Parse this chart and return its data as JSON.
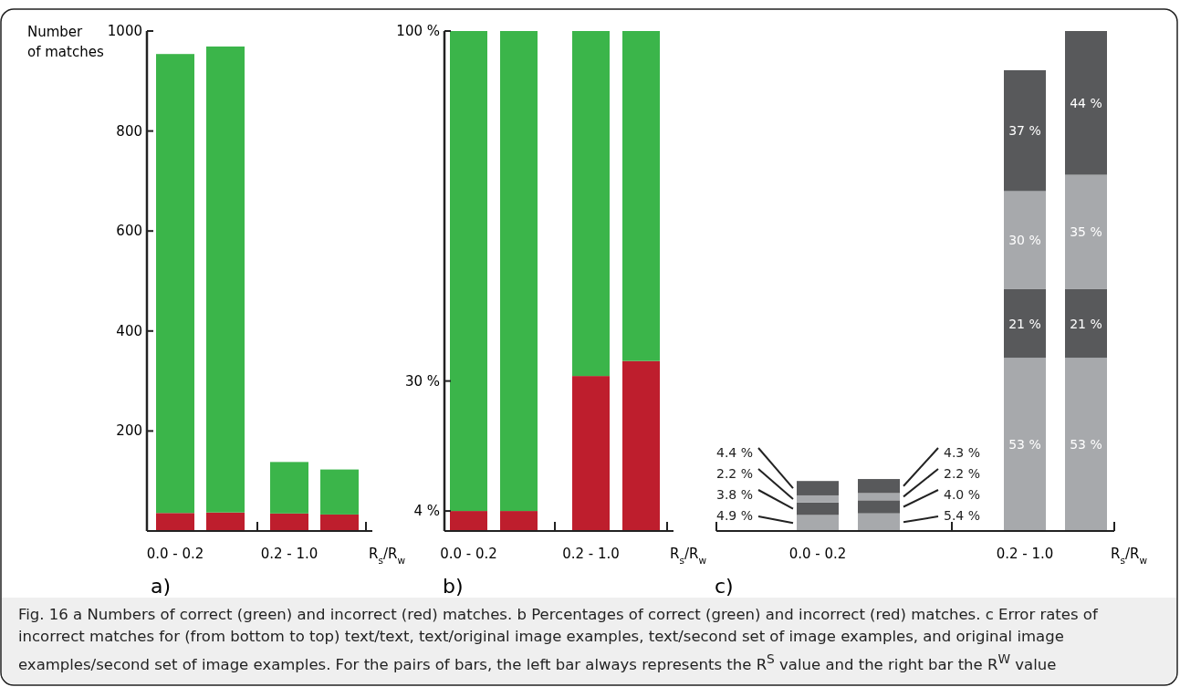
{
  "chart_data": [
    {
      "type": "bar",
      "stacked": true,
      "categories": [
        "0.0 - 0.2",
        null,
        "0.2 - 1.0",
        null
      ],
      "ylabel": "Number of matches",
      "xlabel": "R$_{s}$/R$_{w}$",
      "ylim": [
        0,
        1000
      ],
      "yticks": [
        200,
        400,
        600,
        800,
        1000
      ],
      "series": [
        {
          "color": "#be1e2d",
          "values": [
            36,
            37,
            35,
            33
          ]
        },
        {
          "color": "#3bb54a",
          "values": [
            918,
            932,
            103,
            90
          ]
        }
      ],
      "annotations": [
        "a)",
        "Fig. 16 a Numbers of correct (green) and incorrect (red) matches. b Percentages of correct (green) and incorrect (red) matches. c Error rates of incorrect matches for (from bottom to top) text/text, text/original image examples, text/second set of image examples, and original image examples/second set of image examples. For the pairs of bars, the left bar always represents the R$^{S}$ value and the right bar the R$^{W}$ value"
      ]
    },
    {
      "type": "bar",
      "stacked": true,
      "categories": [
        "0.0 - 0.2",
        null,
        "0.2 - 1.0",
        null
      ],
      "xlabel": "R$_{s}$/R$_{w}$",
      "ylim": [
        0,
        100
      ],
      "yticks": [
        {
          "value": 4,
          "label": "4 %"
        },
        {
          "value": 30,
          "label": "30 %"
        },
        {
          "value": 100,
          "label": "100 %"
        }
      ],
      "series": [
        {
          "color": "#be1e2d",
          "values": [
            4,
            4,
            31,
            34
          ]
        },
        {
          "color": "#3bb54a",
          "values": [
            96,
            96,
            69,
            66
          ]
        }
      ],
      "annotations": [
        "b)"
      ]
    },
    {
      "type": "bar",
      "stacked": true,
      "tick_labels": "x",
      "categories": [
        "0.0 - 0.2",
        null,
        "0.2 - 1.0",
        null
      ],
      "xlabel": "R$_{s}$/R$_{w}$",
      "series": [
        {
          "color": "#a7a9ac",
          "values": [
            4.9,
            5.4,
            53,
            53
          ],
          "value_labels": [
            "4.9 %",
            "5.4 %",
            "53 %",
            "53 %"
          ]
        },
        {
          "color": "#58595b",
          "values": [
            3.8,
            4.0,
            21,
            21
          ],
          "value_labels": [
            "3.8 %",
            "4.0 %",
            "21 %",
            "21 %"
          ]
        },
        {
          "color": "#a7a9ac",
          "values": [
            2.2,
            2.2,
            30,
            35
          ],
          "value_labels": [
            "2.2 %",
            "2.2 %",
            "30 %",
            "35 %"
          ]
        },
        {
          "color": "#58595b",
          "values": [
            4.4,
            4.3,
            37,
            44
          ],
          "value_labels": [
            "4.4 %",
            "4.3 %",
            "37 %",
            "44 %"
          ]
        }
      ],
      "annotations": [
        "c)"
      ]
    }
  ]
}
